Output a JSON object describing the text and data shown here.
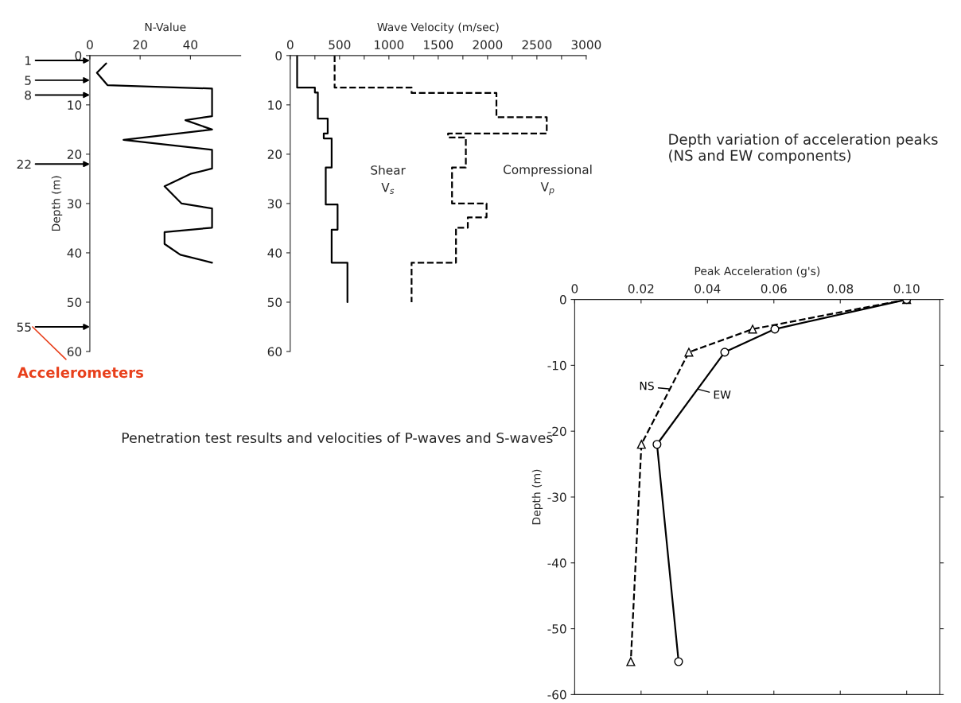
{
  "chart_data": [
    {
      "type": "line",
      "orientation": "horizontal",
      "xlabel": "N-Value",
      "ylabel": "Depth (m)",
      "xlim": [
        0,
        60
      ],
      "xticks": [
        0,
        20,
        40
      ],
      "ylim": [
        60,
        0
      ],
      "yticks": [
        0,
        10,
        20,
        30,
        40,
        50,
        60
      ],
      "grid": false,
      "marker": "none",
      "line_style": "solid",
      "series": [
        {
          "color": "#000000",
          "x": [
            1.6,
            3.5,
            6,
            6.7,
            12.3,
            13.1,
            15,
            17.1,
            19.1,
            22.9,
            24,
            26.5,
            30,
            31,
            34.9,
            35.8,
            38.2,
            40.4,
            42
          ],
          "values": [
            6.5,
            2.8,
            7,
            48.6,
            48.6,
            38,
            48.6,
            13.4,
            48.6,
            48.6,
            40,
            29.7,
            36.5,
            48.6,
            48.6,
            29.7,
            29.7,
            36,
            48.6
          ]
        }
      ],
      "y2lim": [
        60,
        0
      ],
      "y2ticks": [
        1,
        5,
        8,
        22,
        55
      ],
      "annotations": [
        "Accelerometers"
      ]
    },
    {
      "type": "line",
      "orientation": "horizontal",
      "xlabel": "Wave Velocity (m/sec)",
      "xlim": [
        0,
        3000
      ],
      "xticks": [
        0,
        {
          "value": 250,
          "label": null
        },
        500,
        {
          "value": 750,
          "label": null
        },
        1000,
        {
          "value": 1250,
          "label": null
        },
        1500,
        {
          "value": 1750,
          "label": null
        },
        2000,
        {
          "value": 2250,
          "label": null
        },
        2500,
        {
          "value": 2750,
          "label": null
        },
        3000
      ],
      "ylim": [
        60,
        0
      ],
      "yticks": [
        0,
        10,
        20,
        30,
        40,
        50,
        60
      ],
      "grid": false,
      "marker": "none",
      "series": [
        {
          "color": "#000000",
          "line_style": "solid",
          "x": [
            0,
            6.5,
            6.5,
            7.5,
            7.5,
            12.8,
            12.8,
            15.8,
            15.8,
            16.8,
            16.8,
            22.7,
            22.7,
            30.2,
            30.2,
            35.3,
            35.3,
            42,
            42,
            50
          ],
          "values": [
            70,
            70,
            250,
            250,
            280,
            280,
            380,
            380,
            340,
            340,
            420,
            420,
            360,
            360,
            480,
            480,
            420,
            420,
            580,
            580
          ]
        },
        {
          "color": "#000000",
          "line_style": "dashed",
          "x": [
            0,
            6.5,
            6.5,
            7.6,
            7.6,
            12.5,
            12.5,
            15.8,
            15.8,
            16.6,
            16.6,
            22.7,
            22.7,
            30,
            30,
            32.8,
            32.8,
            34.9,
            34.9,
            42,
            42,
            50
          ],
          "values": [
            450,
            450,
            1230,
            1230,
            2090,
            2090,
            2600,
            2600,
            1600,
            1600,
            1780,
            1780,
            1640,
            1640,
            1990,
            1990,
            1800,
            1800,
            1680,
            1680,
            1230,
            1230
          ]
        }
      ],
      "annotations": [
        "Shear\nV$_{s}$",
        "Compressional\nV$_{p}$",
        "Penetration test results and velocities of P-waves and S-waves"
      ]
    },
    {
      "type": "line",
      "title": "Depth variation of acceleration peaks (NS and EW components)",
      "xlabel": "Peak Acceleration (g's)",
      "ylabel": "Depth (m)",
      "xlim": [
        0,
        0.11
      ],
      "xticks": [
        0,
        0.02,
        0.04,
        0.06,
        0.08,
        {
          "value": 0.1,
          "label": "0.10"
        }
      ],
      "ylim": [
        -60,
        0
      ],
      "yticks": [
        0,
        -10,
        -20,
        -30,
        -40,
        -50,
        -60
      ],
      "grid": false,
      "series": [
        {
          "name": "NS",
          "color": "#000000",
          "line_style": "dashed",
          "marker": "triangle",
          "x": [
            0.1,
            0.0536,
            0.0344,
            0.0201,
            0.0169
          ],
          "values": [
            0,
            -4.5,
            -8,
            -22,
            -55
          ]
        },
        {
          "name": "EW",
          "color": "#000000",
          "line_style": "solid",
          "marker": "circle",
          "x": [
            0.1,
            0.0603,
            0.0452,
            0.0248,
            0.0313
          ],
          "values": [
            0,
            -4.5,
            -8,
            -22,
            -55
          ]
        }
      ]
    }
  ]
}
